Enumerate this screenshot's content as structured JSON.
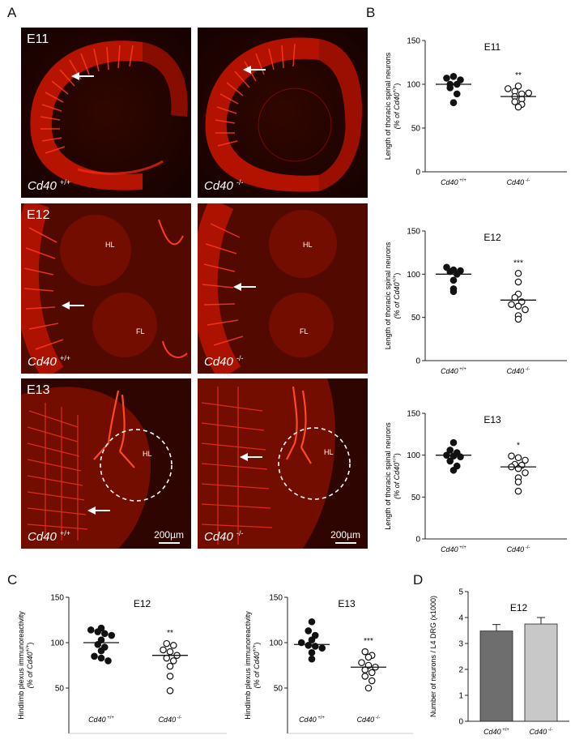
{
  "panel_letters": {
    "a": "A",
    "b": "B",
    "c": "C",
    "d": "D"
  },
  "panel_a": {
    "images": [
      {
        "stage": "E11",
        "genotype": "Cd40",
        "sup": "+/+"
      },
      {
        "stage": "",
        "genotype": "Cd40",
        "sup": "-/-"
      },
      {
        "stage": "E12",
        "genotype": "Cd40",
        "sup": "+/+",
        "labels": [
          "HL",
          "FL"
        ]
      },
      {
        "stage": "",
        "genotype": "Cd40",
        "sup": "-/-",
        "labels": [
          "HL",
          "FL"
        ]
      },
      {
        "stage": "E13",
        "genotype": "Cd40",
        "sup": "+/+",
        "labels": [
          "HL"
        ],
        "scale": "200µm"
      },
      {
        "stage": "",
        "genotype": "Cd40",
        "sup": "-/-",
        "labels": [
          "HL"
        ],
        "scale": "200µm"
      }
    ],
    "colors": {
      "tissue": "#e01a00",
      "background": "#1c0300",
      "annotation": "#ffffff"
    }
  },
  "chart_data": [
    {
      "id": "B-E11",
      "type": "scatter",
      "title": "E11",
      "ylabel_line1": "Length of thoracic spinal neurons",
      "ylabel_line2": "(% of Cd40",
      "ylabel_sup": "+/+",
      "ylabel_close": ")",
      "yticks": [
        0,
        50,
        100,
        150
      ],
      "ylim": [
        0,
        150
      ],
      "categories": [
        {
          "name": "Cd40",
          "sup": "+/+"
        },
        {
          "name": "Cd40",
          "sup": "-/-"
        }
      ],
      "series": [
        {
          "values": [
            100,
            107,
            109,
            100,
            105,
            96,
            89,
            79
          ],
          "mean": 100,
          "filled": true
        },
        {
          "values": [
            98,
            95,
            92,
            89,
            90,
            86,
            83,
            80,
            77,
            74
          ],
          "mean": 86,
          "filled": false,
          "significance": "**"
        }
      ]
    },
    {
      "id": "B-E12",
      "type": "scatter",
      "title": "E12",
      "ylabel_line1": "Length of thoracic spinal neurons",
      "ylabel_line2": "(% of Cd40",
      "ylabel_sup": "+/+",
      "ylabel_close": ")",
      "yticks": [
        0,
        50,
        100,
        150
      ],
      "ylim": [
        0,
        150
      ],
      "categories": [
        {
          "name": "Cd40",
          "sup": "+/+"
        },
        {
          "name": "Cd40",
          "sup": "-/-"
        }
      ],
      "series": [
        {
          "values": [
            108,
            105,
            104,
            103,
            100,
            93,
            83,
            80
          ],
          "mean": 100,
          "filled": true
        },
        {
          "values": [
            101,
            91,
            77,
            73,
            68,
            65,
            63,
            59,
            52,
            48
          ],
          "mean": 70,
          "filled": false,
          "significance": "***"
        }
      ]
    },
    {
      "id": "B-E13",
      "type": "scatter",
      "title": "E13",
      "ylabel_line1": "Length of thoracic spinal neurons",
      "ylabel_line2": "(% of Cd40",
      "ylabel_sup": "+/+",
      "ylabel_close": ")",
      "yticks": [
        0,
        50,
        100,
        150
      ],
      "ylim": [
        0,
        150
      ],
      "categories": [
        {
          "name": "Cd40",
          "sup": "+/+"
        },
        {
          "name": "Cd40",
          "sup": "-/-"
        }
      ],
      "series": [
        {
          "values": [
            115,
            106,
            103,
            100,
            99,
            98,
            93,
            87,
            82
          ],
          "mean": 100,
          "filled": true
        },
        {
          "values": [
            99,
            97,
            94,
            89,
            88,
            86,
            84,
            79,
            73,
            68,
            57
          ],
          "mean": 86,
          "filled": false,
          "significance": "*"
        }
      ]
    },
    {
      "id": "C-E12",
      "type": "scatter",
      "title": "E12",
      "ylabel_line1": "Hindlimb plexus immunoreactivity",
      "ylabel_line2": "(% of Cd40",
      "ylabel_sup": "+/+",
      "ylabel_close": ")",
      "yticks": [
        50,
        100,
        150
      ],
      "ylim": [
        0,
        150
      ],
      "categories": [
        {
          "name": "Cd40",
          "sup": "+/+"
        },
        {
          "name": "Cd40",
          "sup": "-/-"
        }
      ],
      "series": [
        {
          "values": [
            116,
            114,
            112,
            110,
            108,
            103,
            98,
            95,
            91,
            85,
            83,
            80
          ],
          "mean": 100,
          "filled": true
        },
        {
          "values": [
            99,
            97,
            92,
            90,
            86,
            83,
            80,
            74,
            63,
            47
          ],
          "mean": 86,
          "filled": false,
          "significance": "**"
        }
      ]
    },
    {
      "id": "C-E13",
      "type": "scatter",
      "title": "E13",
      "ylabel_line1": "Hindlimb plexus immunoreactivity",
      "ylabel_line2": "(% of Cd40",
      "ylabel_sup": "+/+",
      "ylabel_close": ")",
      "yticks": [
        50,
        100,
        150
      ],
      "ylim": [
        0,
        150
      ],
      "categories": [
        {
          "name": "Cd40",
          "sup": "+/+"
        },
        {
          "name": "Cd40",
          "sup": "-/-"
        }
      ],
      "series": [
        {
          "values": [
            123,
            113,
            108,
            103,
            100,
            97,
            96,
            94,
            89,
            82
          ],
          "mean": 98,
          "filled": true
        },
        {
          "values": [
            90,
            86,
            84,
            78,
            75,
            73,
            70,
            67,
            63,
            58,
            50
          ],
          "mean": 73,
          "filled": false,
          "significance": "***"
        }
      ]
    },
    {
      "id": "D-E12",
      "type": "bar",
      "title": "E12",
      "ylabel": "Number of neurons / L4 DRG (x1000)",
      "yticks": [
        0,
        1,
        2,
        3,
        4,
        5
      ],
      "ylim": [
        0,
        5
      ],
      "categories": [
        {
          "name": "Cd40",
          "sup": "+/+"
        },
        {
          "name": "Cd40",
          "sup": "-/-"
        }
      ],
      "values": [
        3.48,
        3.75
      ],
      "errors": [
        0.25,
        0.25
      ],
      "colors": [
        "#6e6e6e",
        "#c8c8c8"
      ]
    }
  ]
}
